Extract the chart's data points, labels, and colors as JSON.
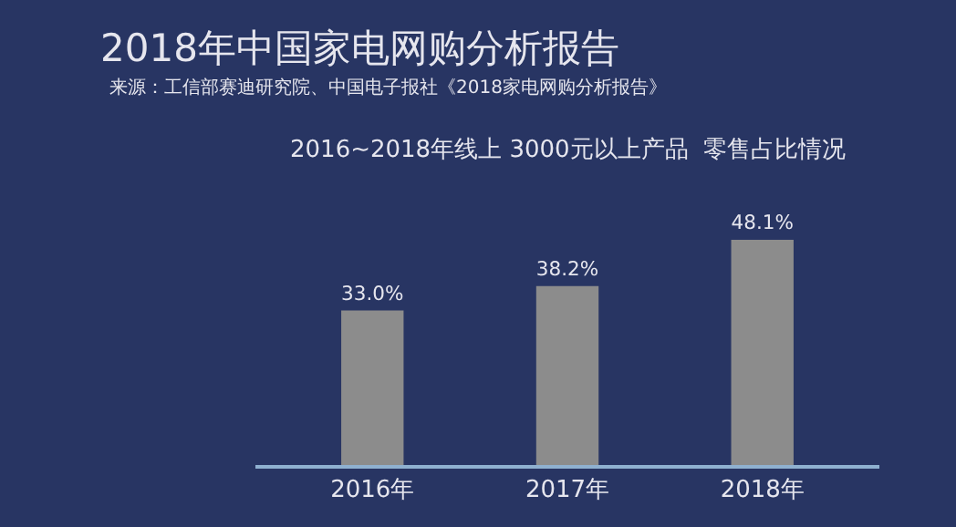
{
  "chart_data": {
    "type": "bar",
    "title": "2018年中国家电网购分析报告",
    "subtitle": "2016~2018年线上 3000元以上产品  零售占比情况",
    "annotations": [
      "来源：工信部赛迪研究院、中国电子报社《2018家电网购分析报告》"
    ],
    "categories": [
      "2016年",
      "2017年",
      "2018年"
    ],
    "values": [
      33.0,
      38.2,
      48.1
    ],
    "value_labels": [
      "33.0%",
      "38.2%",
      "48.1%"
    ],
    "color": "#8c8c8c",
    "legend": false
  }
}
